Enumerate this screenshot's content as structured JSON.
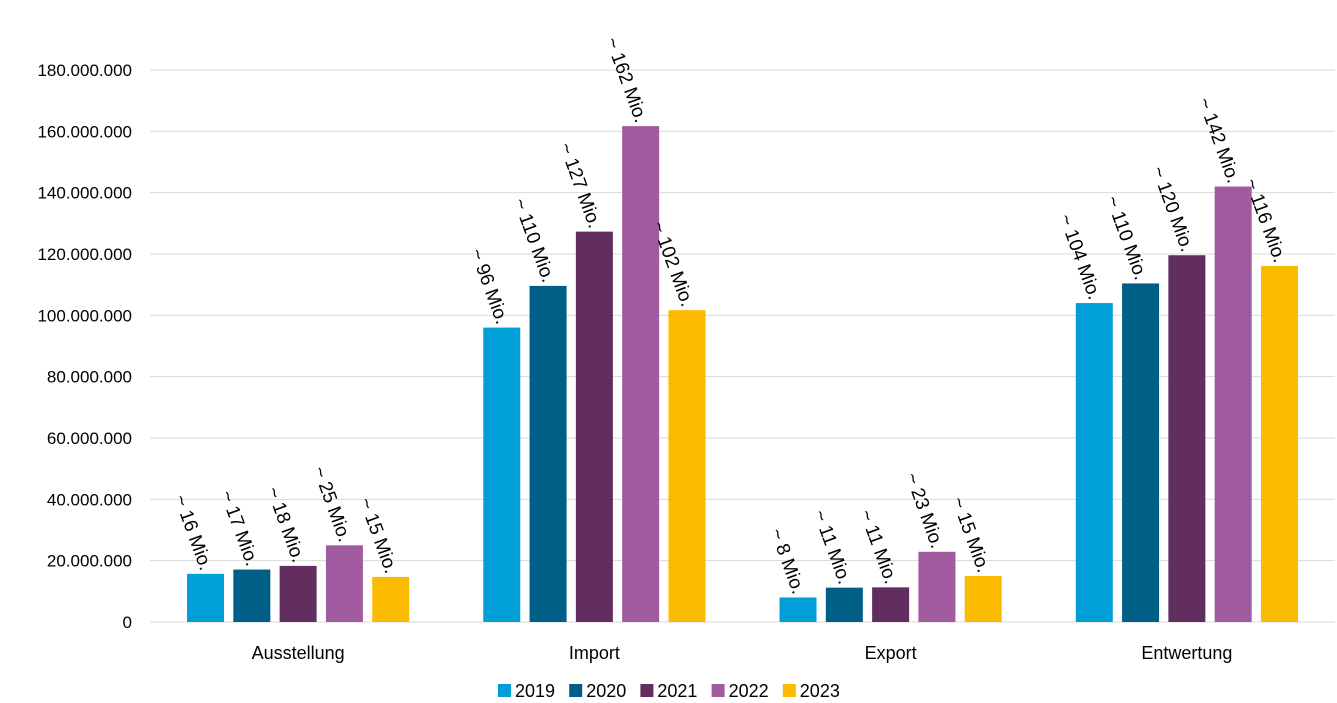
{
  "chart_data": {
    "type": "bar",
    "categories": [
      "Ausstellung",
      "Import",
      "Export",
      "Entwertung"
    ],
    "series": [
      {
        "name": "2019",
        "color": "#009fd7",
        "values": [
          15700000,
          96000000,
          8000000,
          104000000
        ],
        "labels": [
          "~ 16 Mio.",
          "~ 96 Mio.",
          "~ 8 Mio.",
          "~ 104 Mio."
        ]
      },
      {
        "name": "2020",
        "color": "#005f86",
        "values": [
          17100000,
          109600000,
          11200000,
          110400000
        ],
        "labels": [
          "~ 17 Mio.",
          "~ 110 Mio.",
          "~ 11 Mio.",
          "~ 110 Mio."
        ]
      },
      {
        "name": "2021",
        "color": "#612e5f",
        "values": [
          18300000,
          127300000,
          11300000,
          119600000
        ],
        "labels": [
          "~ 18 Mio.",
          "~ 127 Mio.",
          "~ 11 Mio.",
          "~ 120 Mio."
        ]
      },
      {
        "name": "2022",
        "color": "#a05a9e",
        "values": [
          25000000,
          161700000,
          22900000,
          142000000
        ],
        "labels": [
          "~ 25 Mio.",
          "~ 162 Mio.",
          "~ 23 Mio.",
          "~ 142 Mio."
        ]
      },
      {
        "name": "2023",
        "color": "#fbbb00",
        "values": [
          14700000,
          101700000,
          15000000,
          116100000
        ],
        "labels": [
          "~ 15 Mio.",
          "~ 102 Mio.",
          "~ 15 Mio.",
          "~ 116 Mio."
        ]
      }
    ],
    "yticks": [
      0,
      20000000,
      40000000,
      60000000,
      80000000,
      100000000,
      120000000,
      140000000,
      160000000,
      180000000
    ],
    "ytick_labels": [
      "0",
      "20.000.000",
      "40.000.000",
      "60.000.000",
      "80.000.000",
      "100.000.000",
      "120.000.000",
      "140.000.000",
      "160.000.000",
      "180.000.000"
    ],
    "ylim": [
      0,
      180000000
    ],
    "grid": true,
    "legend_position": "bottom"
  }
}
